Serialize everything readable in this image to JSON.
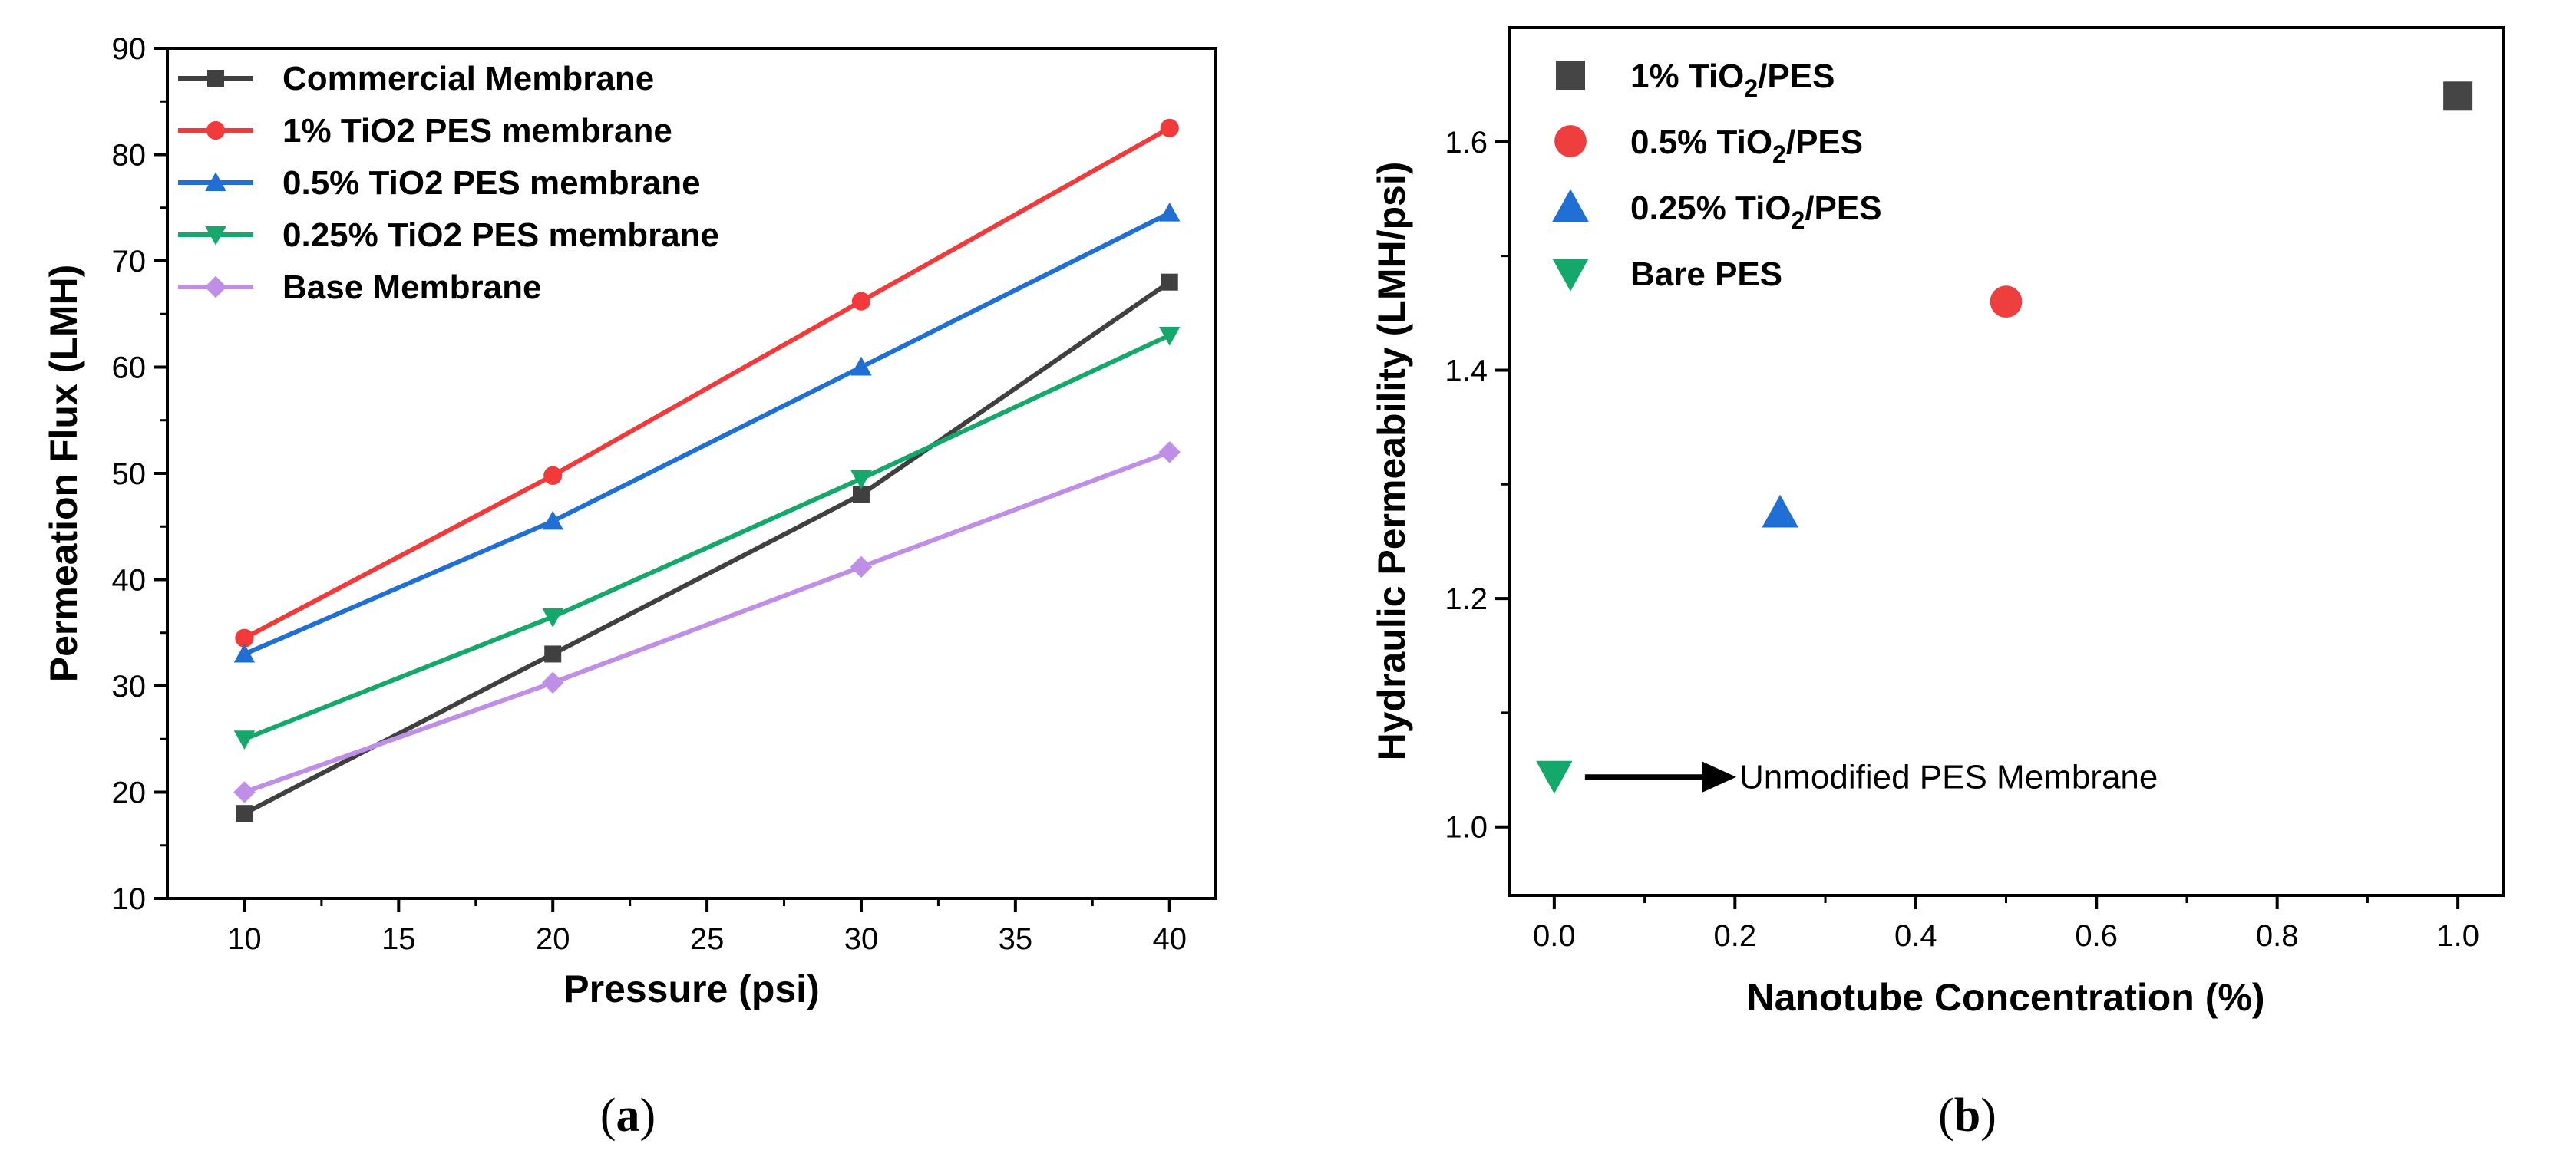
{
  "chart_data": [
    {
      "type": "line",
      "panel": "a",
      "caption_open": "(",
      "caption": "a",
      "caption_close": ")",
      "xlabel": "Pressure (psi)",
      "ylabel": "Permeation Flux (LMH)",
      "xlim": [
        7.5,
        41.5
      ],
      "ylim": [
        10,
        90
      ],
      "xticks": [
        "10",
        "15",
        "20",
        "25",
        "30",
        "35",
        "40"
      ],
      "yticks": [
        "10",
        "20",
        "30",
        "40",
        "50",
        "60",
        "70",
        "80",
        "90"
      ],
      "x": [
        10,
        20,
        30,
        40
      ],
      "legend_position": "top-left",
      "series": [
        {
          "name": "Commercial Membrane",
          "color": "#404040",
          "marker": "square",
          "values": [
            18,
            33,
            48,
            68
          ]
        },
        {
          "name": "1% TiO2 PES membrane",
          "color": "#f23a3a",
          "marker": "circle",
          "values": [
            34.5,
            49.8,
            66.2,
            82.5
          ]
        },
        {
          "name": "0.5% TiO2 PES membrane",
          "color": "#1f6fd4",
          "marker": "triangle-up",
          "values": [
            33,
            45.5,
            60,
            74.5
          ]
        },
        {
          "name": "0.25% TiO2 PES membrane",
          "color": "#14a86b",
          "marker": "triangle-down",
          "values": [
            25,
            36.5,
            49.5,
            63
          ]
        },
        {
          "name": "Base Membrane",
          "color": "#bf8fe8",
          "marker": "diamond",
          "values": [
            20,
            30.3,
            41.2,
            52
          ]
        }
      ]
    },
    {
      "type": "scatter",
      "panel": "b",
      "caption_open": "(",
      "caption": "b",
      "caption_close": ")",
      "xlabel": "Nanotube Concentration (%)",
      "ylabel": "Hydraulic Permeability (LMH/psi)",
      "xlim": [
        -0.05,
        1.05
      ],
      "ylim": [
        0.94,
        1.7
      ],
      "xticks": [
        "0.0",
        "0.2",
        "0.4",
        "0.6",
        "0.8",
        "1.0"
      ],
      "yticks": [
        "1.0",
        "1.2",
        "1.4",
        "1.6"
      ],
      "legend_position": "top-left",
      "series": [
        {
          "name_pre": "1% TiO",
          "name_sub": "2",
          "name_post": "/PES",
          "color": "#454545",
          "marker": "square",
          "x": 1.0,
          "y": 1.64
        },
        {
          "name_pre": "0.5% TiO",
          "name_sub": "2",
          "name_post": "/PES",
          "color": "#ef3e3e",
          "marker": "circle",
          "x": 0.5,
          "y": 1.46
        },
        {
          "name_pre": "0.25% TiO",
          "name_sub": "2",
          "name_post": "/PES",
          "color": "#1f6fd4",
          "marker": "triangle-up",
          "x": 0.25,
          "y": 1.275
        },
        {
          "name_pre": "Bare PES",
          "name_sub": "",
          "name_post": "",
          "color": "#14a86b",
          "marker": "triangle-down",
          "x": 0.0,
          "y": 1.045
        }
      ],
      "annotation": {
        "text": "Unmodified PES Membrane",
        "x": 0.0,
        "y": 1.045
      }
    }
  ]
}
